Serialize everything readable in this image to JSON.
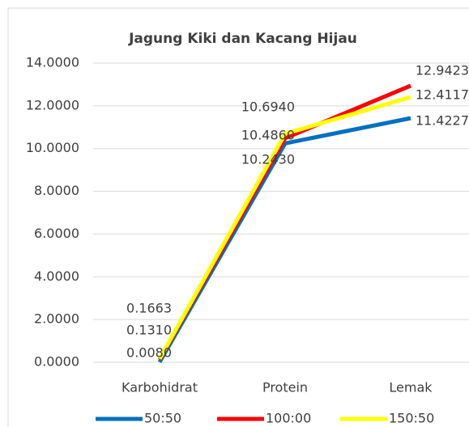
{
  "chart_data": {
    "type": "line",
    "title": "Jagung Kiki dan Kacang Hijau",
    "categories": [
      "Karbohidrat",
      "Protein",
      "Lemak"
    ],
    "series": [
      {
        "name": "50:50",
        "color": "#0070c0",
        "values": [
          0.008,
          10.243,
          11.4227
        ],
        "value_labels": [
          "0.0080",
          "10.2430",
          "11.4227"
        ]
      },
      {
        "name": "100:00",
        "color": "#ff0000",
        "values": [
          0.131,
          10.486,
          12.9423
        ],
        "value_labels": [
          "0.1310",
          "10.4860",
          "12.9423"
        ]
      },
      {
        "name": "150:50",
        "color": "#ffff00",
        "values": [
          0.1663,
          10.694,
          12.4117
        ],
        "value_labels": [
          "0.1663",
          "10.6940",
          "12.4117"
        ]
      }
    ],
    "ylim": [
      0,
      14
    ],
    "yticks": [
      {
        "value": 0,
        "label": "0.0000"
      },
      {
        "value": 2,
        "label": "2.0000"
      },
      {
        "value": 4,
        "label": "4.0000"
      },
      {
        "value": 6,
        "label": "6.0000"
      },
      {
        "value": 8,
        "label": "8.0000"
      },
      {
        "value": 10,
        "label": "10.0000"
      },
      {
        "value": 12,
        "label": "12.0000"
      },
      {
        "value": 14,
        "label": "14.0000"
      }
    ],
    "grid": true,
    "legend": "bottom"
  }
}
